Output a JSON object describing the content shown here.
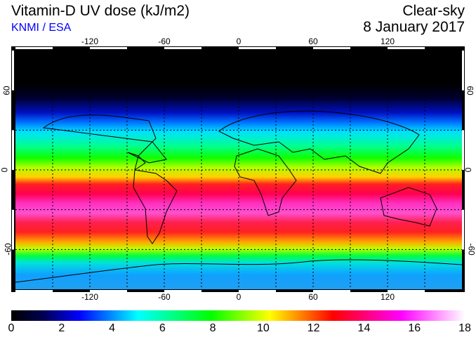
{
  "header": {
    "title": "Vitamin-D UV dose (kJ/m2)",
    "source": "KNMI / ESA",
    "condition": "Clear-sky",
    "date": "8 January 2017"
  },
  "map": {
    "lon_labels": [
      "-120",
      "-60",
      "0",
      "60",
      "120"
    ],
    "lon_values": [
      -120,
      -60,
      0,
      60,
      120
    ],
    "lat_labels": [
      "60",
      "0",
      "-60"
    ],
    "lat_values": [
      60,
      0,
      -60
    ]
  },
  "colorbar": {
    "ticks": [
      "0",
      "2",
      "4",
      "6",
      "8",
      "10",
      "12",
      "14",
      "16",
      "18"
    ],
    "min": 0,
    "max": 18,
    "colors": [
      "#000000",
      "#0000ff",
      "#00ffff",
      "#00ff00",
      "#ffff00",
      "#ff0000",
      "#ff00ff",
      "#ffffff"
    ]
  }
}
